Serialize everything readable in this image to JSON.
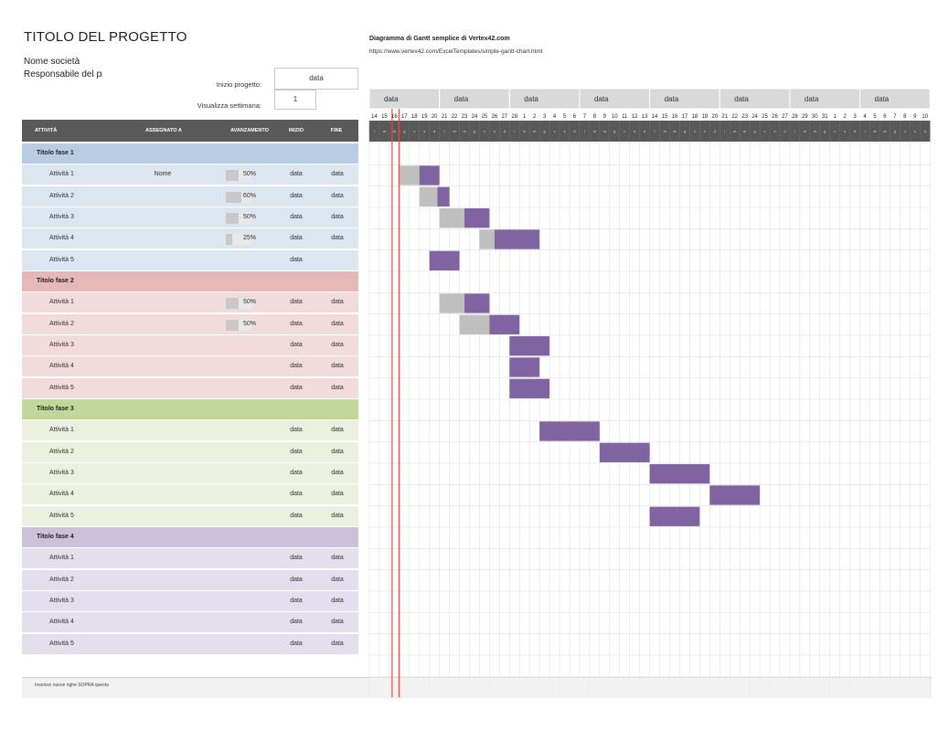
{
  "header": {
    "title": "TITOLO DEL PROGETTO",
    "company": "Nome società",
    "manager": "Responsabile del progetto",
    "start_label": "Inizio progetto:",
    "start_value": "data",
    "week_label": "Visualizza settimana:",
    "week_value": "1",
    "gantt_title": "Diagramma di Gantt semplice di Vertex42.com",
    "gantt_url": "https://www.vertex42.com/ExcelTemplates/simple-gantt-chart.html"
  },
  "columns": {
    "activity": "ATTIVITÀ",
    "assigned": "ASSEGNATO A",
    "progress": "AVANZAMENTO",
    "start": "INIZIO",
    "end": "FINE"
  },
  "footer": {
    "note": "Inserisci nuove righe SOPRA questa"
  },
  "timeline": {
    "week_labels": [
      "data",
      "data",
      "data",
      "data",
      "data",
      "data",
      "data",
      "data"
    ],
    "days": [
      14,
      15,
      16,
      17,
      18,
      19,
      20,
      21,
      22,
      23,
      24,
      25,
      26,
      27,
      28,
      1,
      2,
      3,
      4,
      5,
      6,
      7,
      8,
      9,
      10,
      11,
      12,
      13,
      14,
      15,
      16,
      17,
      18,
      19,
      20,
      21,
      22,
      23,
      24,
      25,
      26,
      27,
      28,
      29,
      30,
      31,
      1,
      2,
      3,
      4,
      5,
      6,
      7,
      8,
      9,
      10
    ],
    "dow": [
      "l",
      "m",
      "m",
      "g",
      "v",
      "s",
      "d"
    ],
    "today_index": 2
  },
  "colors": {
    "phase1_title": "#b8cce4",
    "phase1_row": "#dce6f1",
    "phase2_title": "#e6b8b7",
    "phase2_row": "#f2dcdb",
    "phase3_title": "#c4d79b",
    "phase3_row": "#ebf1de",
    "phase4_title": "#ccc0da",
    "phase4_row": "#e4dfec",
    "bar_done": "#bfbfbf",
    "bar_todo": "#8064a2",
    "today_line": "#e0504a",
    "header_dark": "#595959"
  },
  "phases": [
    {
      "title": "Titolo fase 1",
      "color_key": "phase1",
      "tasks": [
        {
          "name": "Attività 1",
          "assigned": "Nome",
          "progress": "50%",
          "progress_value": 0.5,
          "start": "data",
          "end": "data",
          "bar_start": 3,
          "bar_len": 4
        },
        {
          "name": "Attività 2",
          "assigned": "",
          "progress": "60%",
          "progress_value": 0.6,
          "start": "data",
          "end": "data",
          "bar_start": 5,
          "bar_len": 3
        },
        {
          "name": "Attività 3",
          "assigned": "",
          "progress": "50%",
          "progress_value": 0.5,
          "start": "data",
          "end": "data",
          "bar_start": 7,
          "bar_len": 5
        },
        {
          "name": "Attività 4",
          "assigned": "",
          "progress": "25%",
          "progress_value": 0.25,
          "start": "data",
          "end": "data",
          "bar_start": 11,
          "bar_len": 6
        },
        {
          "name": "Attività 5",
          "assigned": "",
          "progress": "",
          "progress_value": 0,
          "start": "data",
          "end": "",
          "bar_start": 6,
          "bar_len": 3
        }
      ]
    },
    {
      "title": "Titolo fase 2",
      "color_key": "phase2",
      "tasks": [
        {
          "name": "Attività 1",
          "assigned": "",
          "progress": "50%",
          "progress_value": 0.5,
          "start": "data",
          "end": "data",
          "bar_start": 7,
          "bar_len": 5
        },
        {
          "name": "Attività 2",
          "assigned": "",
          "progress": "50%",
          "progress_value": 0.5,
          "start": "data",
          "end": "data",
          "bar_start": 9,
          "bar_len": 6
        },
        {
          "name": "Attività 3",
          "assigned": "",
          "progress": "",
          "progress_value": 0,
          "start": "data",
          "end": "data",
          "bar_start": 14,
          "bar_len": 4
        },
        {
          "name": "Attività 4",
          "assigned": "",
          "progress": "",
          "progress_value": 0,
          "start": "data",
          "end": "data",
          "bar_start": 14,
          "bar_len": 3
        },
        {
          "name": "Attività 5",
          "assigned": "",
          "progress": "",
          "progress_value": 0,
          "start": "data",
          "end": "data",
          "bar_start": 14,
          "bar_len": 4
        }
      ]
    },
    {
      "title": "Titolo fase 3",
      "color_key": "phase3",
      "tasks": [
        {
          "name": "Attività 1",
          "assigned": "",
          "progress": "",
          "progress_value": 0,
          "start": "data",
          "end": "data",
          "bar_start": 17,
          "bar_len": 6
        },
        {
          "name": "Attività 2",
          "assigned": "",
          "progress": "",
          "progress_value": 0,
          "start": "data",
          "end": "data",
          "bar_start": 23,
          "bar_len": 5
        },
        {
          "name": "Attività 3",
          "assigned": "",
          "progress": "",
          "progress_value": 0,
          "start": "data",
          "end": "data",
          "bar_start": 28,
          "bar_len": 6
        },
        {
          "name": "Attività 4",
          "assigned": "",
          "progress": "",
          "progress_value": 0,
          "start": "data",
          "end": "data",
          "bar_start": 34,
          "bar_len": 5
        },
        {
          "name": "Attività 5",
          "assigned": "",
          "progress": "",
          "progress_value": 0,
          "start": "data",
          "end": "data",
          "bar_start": 28,
          "bar_len": 5
        }
      ]
    },
    {
      "title": "Titolo fase 4",
      "color_key": "phase4",
      "tasks": [
        {
          "name": "Attività 1",
          "assigned": "",
          "progress": "",
          "progress_value": 0,
          "start": "data",
          "end": "data",
          "bar_start": null,
          "bar_len": 0
        },
        {
          "name": "Attività 2",
          "assigned": "",
          "progress": "",
          "progress_value": 0,
          "start": "data",
          "end": "data",
          "bar_start": null,
          "bar_len": 0
        },
        {
          "name": "Attività 3",
          "assigned": "",
          "progress": "",
          "progress_value": 0,
          "start": "data",
          "end": "data",
          "bar_start": null,
          "bar_len": 0
        },
        {
          "name": "Attività 4",
          "assigned": "",
          "progress": "",
          "progress_value": 0,
          "start": "data",
          "end": "data",
          "bar_start": null,
          "bar_len": 0
        },
        {
          "name": "Attività 5",
          "assigned": "",
          "progress": "",
          "progress_value": 0,
          "start": "data",
          "end": "data",
          "bar_start": null,
          "bar_len": 0
        }
      ]
    }
  ]
}
